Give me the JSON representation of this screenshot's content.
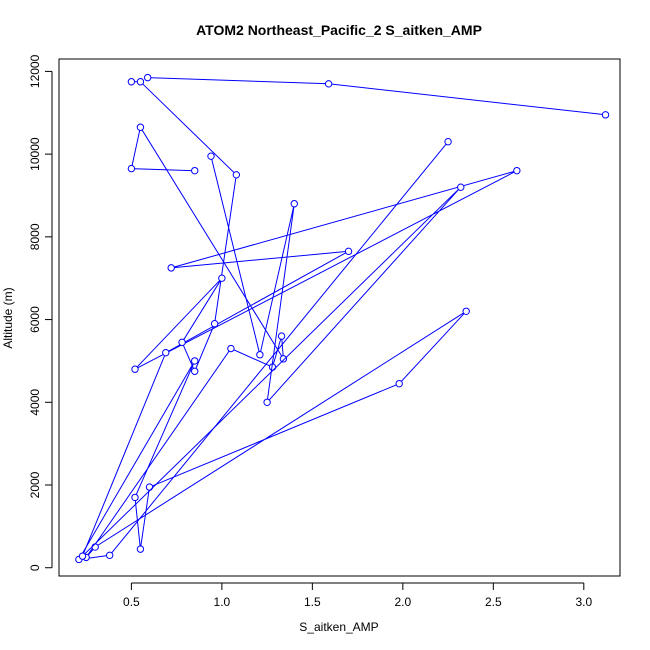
{
  "chart_data": {
    "type": "line",
    "title": "ATOM2 Northeast_Pacific_2 S_aitken_AMP",
    "xlabel": "S_aitken_AMP",
    "ylabel": "Altitude (m)",
    "xlim": [
      0.1,
      3.2
    ],
    "ylim": [
      -200,
      12300
    ],
    "x_ticks": [
      0.5,
      1.0,
      1.5,
      2.0,
      2.5,
      3.0
    ],
    "x_tick_labels": [
      "0.5",
      "1.0",
      "1.5",
      "2.0",
      "2.5",
      "3.0"
    ],
    "y_ticks": [
      0,
      2000,
      4000,
      6000,
      8000,
      10000,
      12000
    ],
    "y_tick_labels": [
      "0",
      "2000",
      "4000",
      "6000",
      "8000",
      "10000",
      "12000"
    ],
    "grid": false,
    "marker": "open-circle",
    "series_color": "#0000ff",
    "series": [
      {
        "x": [
          2.25,
          0.38,
          0.21,
          0.85,
          0.52,
          0.55,
          0.6,
          1.98,
          2.35,
          0.3,
          0.25,
          1.05,
          1.28,
          1.33,
          1.34,
          0.55,
          0.5,
          0.85
        ],
        "y": [
          10300,
          300,
          200,
          5000,
          1700,
          450,
          1950,
          4450,
          6200,
          500,
          250,
          5300,
          4850,
          5600,
          5050,
          10650,
          9650,
          9600
        ]
      },
      {
        "x": [
          0.94,
          1.21,
          1.4,
          1.25,
          2.32,
          0.23,
          0.69,
          1.7,
          0.72,
          2.63,
          0.52,
          1.0,
          0.78,
          0.85,
          0.96,
          1.08,
          0.55,
          0.5
        ],
        "y": [
          9950,
          5150,
          8800,
          4000,
          9200,
          280,
          5200,
          7650,
          7250,
          9600,
          4800,
          7000,
          5450,
          4750,
          5900,
          9500,
          11750,
          11750
        ]
      },
      {
        "x": [
          0.59,
          1.59,
          3.12
        ],
        "y": [
          11850,
          11700,
          10950
        ]
      }
    ]
  }
}
